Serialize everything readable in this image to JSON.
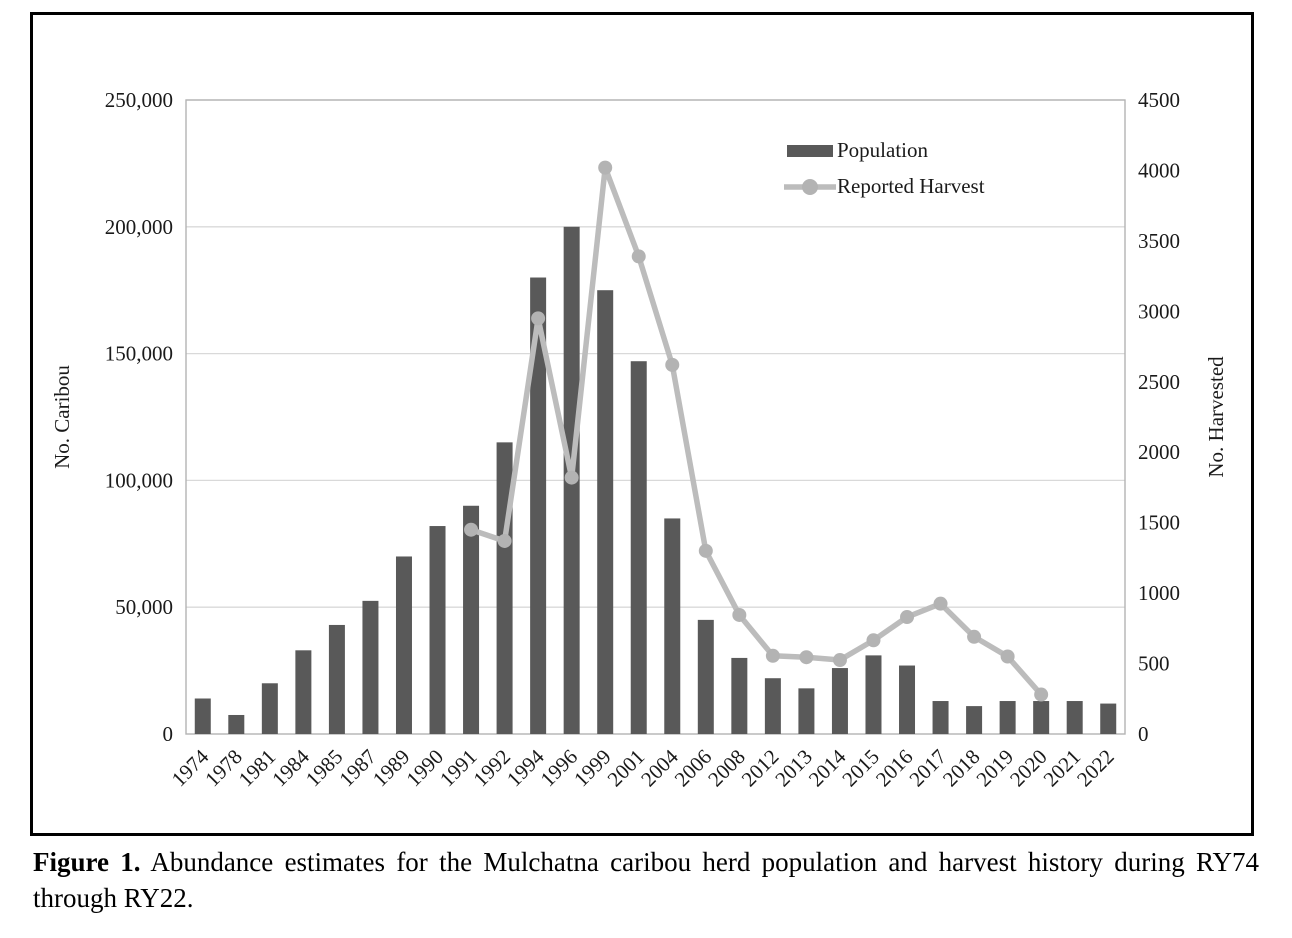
{
  "figure": {
    "caption_bold": "Figure 1.",
    "caption_rest": " Abundance estimates for the Mulchatna caribou herd population and harvest history during RY74 through RY22."
  },
  "chart_data": {
    "type": "bar",
    "title": "",
    "categories": [
      "1974",
      "1978",
      "1981",
      "1984",
      "1985",
      "1987",
      "1989",
      "1990",
      "1991",
      "1992",
      "1994",
      "1996",
      "1999",
      "2001",
      "2004",
      "2006",
      "2008",
      "2012",
      "2013",
      "2014",
      "2015",
      "2016",
      "2017",
      "2018",
      "2019",
      "2020",
      "2021",
      "2022"
    ],
    "series": [
      {
        "name": "Population",
        "type": "bar",
        "axis": "left",
        "color": "#595959",
        "values": [
          14000,
          7500,
          20000,
          33000,
          43000,
          52500,
          70000,
          82000,
          90000,
          115000,
          180000,
          200000,
          175000,
          147000,
          85000,
          45000,
          30000,
          22000,
          18000,
          26000,
          31000,
          27000,
          13000,
          11000,
          13000,
          13000,
          13000,
          12000
        ]
      },
      {
        "name": "Reported Harvest",
        "type": "line",
        "axis": "right",
        "color": "#bcbcbc",
        "marker_color": "#b3b3b3",
        "values": [
          null,
          null,
          null,
          null,
          null,
          null,
          null,
          null,
          1450,
          1370,
          2950,
          1820,
          4020,
          3390,
          2620,
          1300,
          845,
          555,
          545,
          525,
          665,
          830,
          925,
          690,
          550,
          280,
          null,
          null
        ]
      }
    ],
    "left_axis": {
      "label": "No. Caribou",
      "min": 0,
      "max": 250000,
      "step": 50000,
      "ticks": [
        "0",
        "50,000",
        "100,000",
        "150,000",
        "200,000",
        "250,000"
      ]
    },
    "right_axis": {
      "label": "No. Harvested",
      "min": 0,
      "max": 4500,
      "step": 500,
      "ticks": [
        "0",
        "500",
        "1000",
        "1500",
        "2000",
        "2500",
        "3000",
        "3500",
        "4000",
        "4500"
      ]
    },
    "legend": {
      "position": "top-right",
      "items": [
        "Population",
        "Reported Harvest"
      ]
    },
    "grid": true,
    "gridline_color": "#d9d9d9",
    "plot_border_color": "#b3b3b3"
  }
}
